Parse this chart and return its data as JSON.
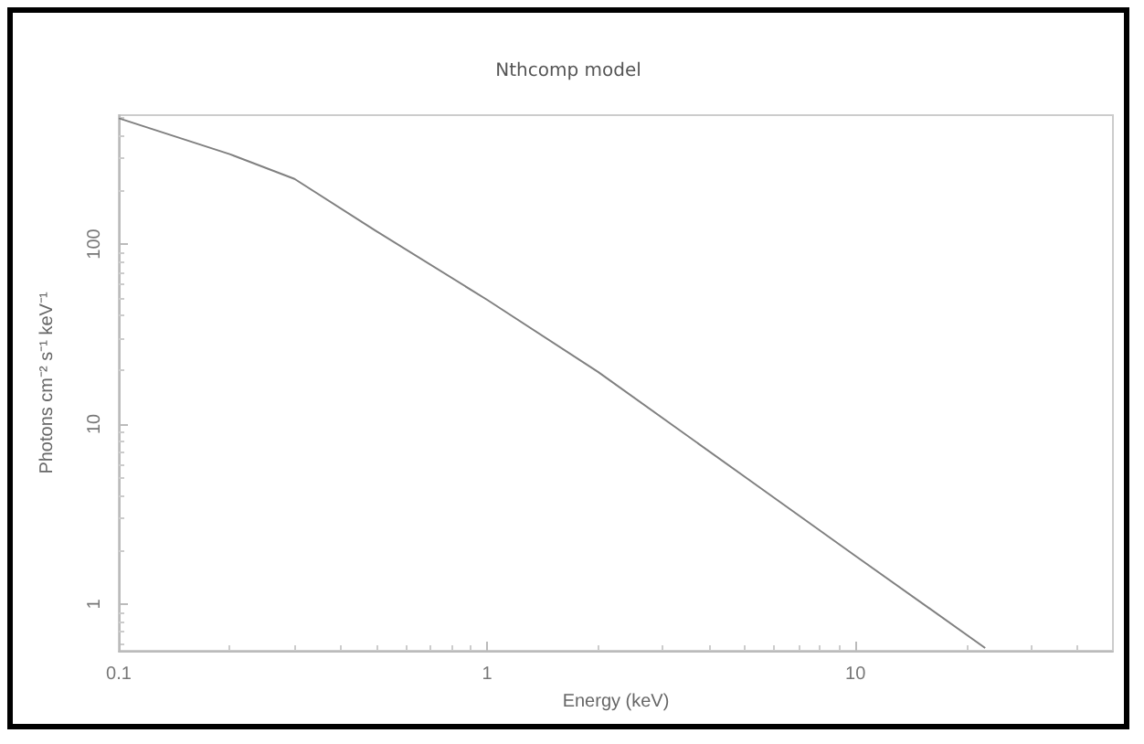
{
  "chart_data": {
    "type": "line",
    "title": "Nthcomp model",
    "xlabel": "Energy (keV)",
    "ylabel": "Photons cm⁻² s⁻¹ keV⁻¹",
    "x": [
      0.1,
      0.2,
      0.3,
      0.5,
      1,
      2,
      5,
      10,
      22.5
    ],
    "series": [
      {
        "color": "#808080",
        "values": [
          500,
          316,
          230,
          118,
          49,
          19.5,
          5.1,
          1.85,
          0.57
        ]
      }
    ],
    "log": "xy",
    "xlim": [
      0.1,
      50
    ],
    "ylim": [
      0.55,
      520
    ],
    "xticks": [
      0.1,
      1,
      10
    ],
    "yticks": [
      1,
      10,
      100
    ],
    "grid": false,
    "marker": "none",
    "line_style": "solid"
  }
}
